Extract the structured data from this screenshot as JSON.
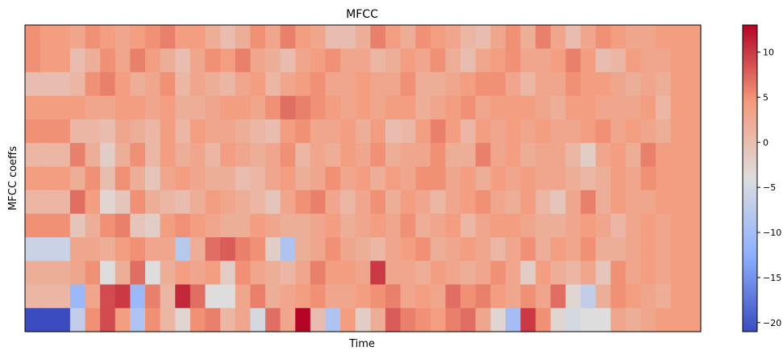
{
  "chart_data": {
    "type": "heatmap",
    "title": "MFCC",
    "xlabel": "Time",
    "ylabel": "MFCC coeffs",
    "n_rows": 13,
    "n_cols": 45,
    "value_range": [
      -21,
      13
    ],
    "colormap": "coolwarm",
    "colorbar": {
      "ticks": [
        10,
        5,
        0,
        -5,
        -10,
        -15,
        -20
      ],
      "tick_labels": [
        "10",
        "5",
        "0",
        "−5",
        "−10",
        "−15",
        "−20"
      ]
    },
    "rows": [
      [
        5,
        4,
        4,
        3,
        5,
        4,
        3,
        4,
        5,
        6,
        4,
        4,
        2,
        0,
        2,
        5,
        3,
        6,
        4,
        3,
        0,
        0,
        2,
        6,
        4,
        2,
        5,
        4,
        3,
        1,
        0,
        3,
        5,
        2,
        6,
        3,
        0,
        3,
        5,
        4,
        3,
        3,
        4,
        4,
        4
      ],
      [
        5,
        4,
        4,
        0,
        2,
        5,
        3,
        6,
        4,
        2,
        0,
        3,
        5,
        4,
        6,
        3,
        2,
        0,
        3,
        4,
        5,
        3,
        3,
        1,
        2,
        4,
        3,
        5,
        2,
        0,
        3,
        4,
        5,
        3,
        3,
        4,
        6,
        4,
        0,
        1,
        4,
        3,
        3,
        4,
        4
      ],
      [
        0,
        0,
        0,
        1,
        5,
        6,
        4,
        2,
        3,
        5,
        1,
        3,
        2,
        1,
        3,
        4,
        1,
        3,
        4,
        5,
        3,
        3,
        4,
        3,
        3,
        5,
        2,
        2,
        3,
        4,
        5,
        5,
        3,
        1,
        3,
        3,
        5,
        4,
        4,
        3,
        2,
        3,
        2,
        4,
        4
      ],
      [
        4,
        4,
        4,
        4,
        3,
        3,
        4,
        4,
        3,
        4,
        2,
        2,
        3,
        4,
        4,
        3,
        5,
        7,
        6,
        5,
        4,
        3,
        4,
        3,
        4,
        4,
        2,
        3,
        4,
        5,
        3,
        4,
        4,
        4,
        3,
        2,
        4,
        4,
        3,
        3,
        3,
        4,
        1,
        4,
        4
      ],
      [
        5,
        5,
        5,
        1,
        1,
        0,
        3,
        2,
        1,
        4,
        1,
        4,
        3,
        3,
        2,
        1,
        0,
        4,
        5,
        3,
        3,
        4,
        2,
        4,
        0,
        1,
        4,
        6,
        4,
        1,
        4,
        3,
        4,
        3,
        4,
        3,
        3,
        4,
        5,
        3,
        4,
        3,
        2,
        4,
        4
      ],
      [
        1,
        1,
        1,
        6,
        2,
        -2,
        2,
        5,
        1,
        4,
        2,
        3,
        1,
        4,
        3,
        2,
        3,
        5,
        1,
        3,
        2,
        4,
        3,
        5,
        2,
        3,
        3,
        5,
        2,
        2,
        6,
        3,
        4,
        2,
        3,
        3,
        1,
        -2,
        3,
        4,
        2,
        6,
        4,
        4,
        4
      ],
      [
        4,
        4,
        4,
        2,
        5,
        0,
        5,
        2,
        -1,
        3,
        4,
        3,
        2,
        2,
        0,
        1,
        3,
        4,
        2,
        3,
        5,
        3,
        4,
        2,
        4,
        3,
        5,
        5,
        3,
        4,
        2,
        4,
        3,
        4,
        3,
        3,
        2,
        1,
        2,
        4,
        3,
        5,
        4,
        4,
        4
      ],
      [
        1,
        1,
        1,
        7,
        4,
        -3,
        -1,
        5,
        2,
        1,
        0,
        2,
        4,
        3,
        2,
        1,
        -1,
        3,
        5,
        6,
        3,
        1,
        3,
        5,
        2,
        4,
        3,
        1,
        3,
        4,
        5,
        3,
        2,
        4,
        1,
        -1,
        3,
        6,
        2,
        4,
        3,
        3,
        4,
        4,
        4
      ],
      [
        5,
        5,
        5,
        -1,
        2,
        5,
        6,
        -1,
        -2,
        4,
        5,
        4,
        3,
        2,
        2,
        4,
        3,
        2,
        2,
        3,
        4,
        2,
        3,
        4,
        3,
        5,
        2,
        3,
        4,
        1,
        3,
        4,
        4,
        3,
        2,
        2,
        3,
        4,
        3,
        1,
        3,
        4,
        3,
        4,
        4
      ],
      [
        -6,
        -6,
        -6,
        3,
        3,
        2,
        4,
        5,
        3,
        3,
        -8,
        2,
        7,
        8,
        6,
        5,
        -2,
        -9,
        2,
        3,
        5,
        3,
        2,
        1,
        3,
        4,
        5,
        2,
        3,
        4,
        3,
        1,
        3,
        5,
        2,
        4,
        3,
        5,
        2,
        2,
        3,
        4,
        3,
        4,
        4
      ],
      [
        2,
        2,
        2,
        3,
        5,
        -4,
        2,
        7,
        -4,
        2,
        4,
        3,
        4,
        -2,
        5,
        3,
        2,
        1,
        3,
        6,
        4,
        4,
        3,
        10,
        3,
        3,
        2,
        4,
        3,
        2,
        3,
        5,
        3,
        -2,
        4,
        2,
        1,
        3,
        -1,
        5,
        3,
        4,
        3,
        4,
        4
      ],
      [
        1,
        1,
        1,
        -11,
        3,
        9,
        10,
        -11,
        6,
        1,
        11,
        7,
        -4,
        -4,
        3,
        6,
        2,
        3,
        4,
        5,
        3,
        3,
        4,
        5,
        6,
        3,
        4,
        3,
        7,
        5,
        6,
        4,
        3,
        5,
        3,
        7,
        -3,
        -7,
        2,
        5,
        4,
        3,
        2,
        4,
        4
      ],
      [
        -21,
        -21,
        -21,
        -7,
        5,
        9,
        4,
        -9,
        5,
        1,
        -3,
        5,
        6,
        1,
        3,
        -5,
        7,
        3,
        13,
        0,
        -9,
        4,
        -2,
        2,
        8,
        6,
        5,
        4,
        6,
        7,
        3,
        -3,
        -10,
        10,
        5,
        -3,
        -5,
        -4,
        -4,
        3,
        2,
        3,
        4,
        4,
        4
      ]
    ]
  }
}
